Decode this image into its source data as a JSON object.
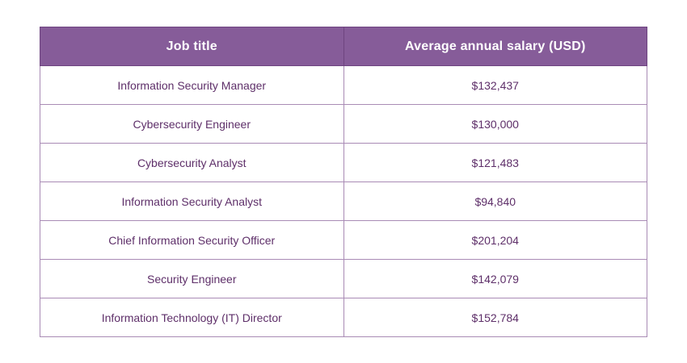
{
  "colors": {
    "header_bg": "#865C99",
    "header_text": "#FFFFFF",
    "border_dark": "#6E4480",
    "border_light": "#A98BB5",
    "body_text": "#5E2F69",
    "page_bg": "#FFFFFF"
  },
  "table": {
    "headers": [
      "Job title",
      "Average annual salary (USD)"
    ],
    "rows": [
      {
        "job_title": "Information Security Manager",
        "salary": "$132,437"
      },
      {
        "job_title": "Cybersecurity Engineer",
        "salary": "$130,000"
      },
      {
        "job_title": "Cybersecurity Analyst",
        "salary": "$121,483"
      },
      {
        "job_title": "Information Security Analyst",
        "salary": "$94,840"
      },
      {
        "job_title": "Chief Information Security Officer",
        "salary": "$201,204"
      },
      {
        "job_title": "Security Engineer",
        "salary": "$142,079"
      },
      {
        "job_title": "Information Technology (IT) Director",
        "salary": "$152,784"
      }
    ]
  }
}
